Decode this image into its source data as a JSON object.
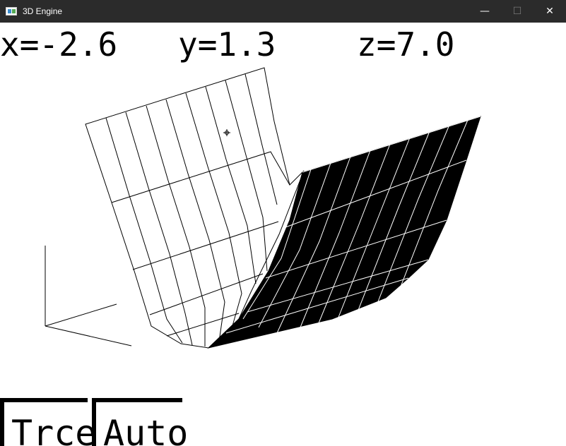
{
  "window": {
    "title": "3D Engine",
    "minimize_glyph": "—",
    "maximize_glyph": "☐",
    "close_glyph": "✕"
  },
  "readouts": {
    "x": "x=-2.6",
    "y": "y=1.3",
    "z": "z=7.0"
  },
  "buttons": {
    "trace_label": "Trce",
    "auto_label": "Auto"
  },
  "colors": {
    "titlebar": "#2b2b2b",
    "background": "#ffffff",
    "ink": "#000000"
  },
  "icons": {
    "app": "app-window-icon",
    "cursor": "crosshair-icon"
  }
}
